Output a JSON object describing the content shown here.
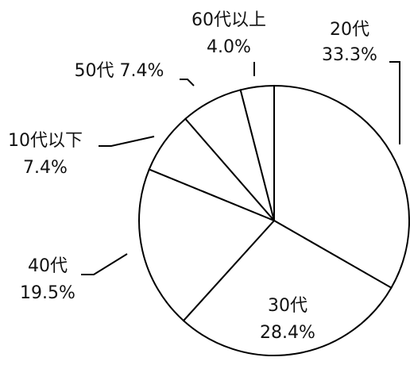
{
  "chart_data": {
    "type": "pie",
    "categories": [
      "20代",
      "30代",
      "40代",
      "10代以下",
      "50代",
      "60代以上"
    ],
    "values": [
      33.3,
      28.4,
      19.5,
      7.4,
      7.4,
      4.0
    ],
    "value_labels": [
      "33.3%",
      "28.4%",
      "19.5%",
      "7.4%",
      "7.4%",
      "4.0%"
    ],
    "color": "#ffffff",
    "edge_color": "#000000"
  }
}
